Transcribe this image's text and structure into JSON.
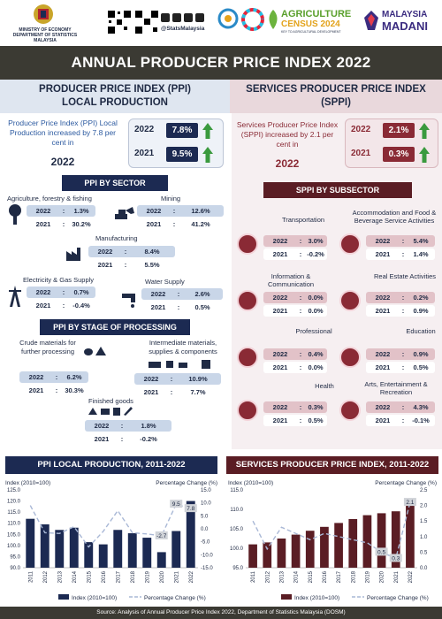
{
  "header": {
    "ministry_line1": "MINISTRY OF ECONOMY",
    "ministry_line2": "DEPARTMENT OF STATISTICS MALAYSIA",
    "social_handle": "@StatsMalaysia",
    "census_title": "AGRICULTURE",
    "census_sub": "CENSUS 2024",
    "census_tag": "KEY TO AGRICULTURAL DEVELOPMENT",
    "madani_line1": "MALAYSIA",
    "madani_line2": "MADANI"
  },
  "title": "ANNUAL PRODUCER PRICE INDEX 2022",
  "left": {
    "heading_line1": "PRODUCER PRICE INDEX (PPI)",
    "heading_line2": "LOCAL PRODUCTION",
    "summary": "Producer Price Index (PPI) Local Production increased by 7.8 per cent in",
    "summary_year": "2022",
    "headline": [
      {
        "year": "2022",
        "value": "7.8%"
      },
      {
        "year": "2021",
        "value": "9.5%"
      }
    ],
    "sector_title": "PPI BY SECTOR",
    "sectors": [
      {
        "name": "Agriculture, forestry & fishing",
        "y2022": "1.3%",
        "y2021": "30.2%"
      },
      {
        "name": "Mining",
        "y2022": "12.6%",
        "y2021": "41.2%"
      },
      {
        "name": "Manufacturing",
        "y2022": "8.4%",
        "y2021": "5.5%"
      },
      {
        "name": "Electricity & Gas Supply",
        "y2022": "0.7%",
        "y2021": "-0.4%"
      },
      {
        "name": "Water Supply",
        "y2022": "2.6%",
        "y2021": "0.5%"
      }
    ],
    "stage_title": "PPI BY STAGE OF PROCESSING",
    "stages": [
      {
        "name": "Crude materials  for further processing",
        "y2022": "6.2%",
        "y2021": "30.3%"
      },
      {
        "name": "Intermediate materials, supplies & components",
        "y2022": "10.9%",
        "y2021": "7.7%"
      },
      {
        "name": "Finished goods",
        "y2022": "1.8%",
        "y2021": "-0.2%"
      }
    ],
    "year_2022": "2022",
    "year_2021": "2021"
  },
  "right": {
    "heading_line1": "SERVICES PRODUCER PRICE INDEX",
    "heading_line2": "(SPPI)",
    "summary": "Services Producer Price Index (SPPI) increased by 2.1 per cent in",
    "summary_year": "2022",
    "headline": [
      {
        "year": "2022",
        "value": "2.1%"
      },
      {
        "year": "2021",
        "value": "0.3%"
      }
    ],
    "subsector_title": "SPPI BY SUBSECTOR",
    "subsectors": [
      {
        "name": "Transportation",
        "y2022": "3.0%",
        "y2021": "-0.2%"
      },
      {
        "name": "Accommodation and Food & Beverage Service Activities",
        "y2022": "5.4%",
        "y2021": "1.4%"
      },
      {
        "name": "Information & Communication",
        "y2022": "0.0%",
        "y2021": "0.0%"
      },
      {
        "name": "Real Estate Activities",
        "y2022": "0.2%",
        "y2021": "0.9%"
      },
      {
        "name": "Professional",
        "y2022": "0.4%",
        "y2021": "0.0%"
      },
      {
        "name": "Education",
        "y2022": "0.9%",
        "y2021": "0.5%"
      },
      {
        "name": "Health",
        "y2022": "0.3%",
        "y2021": "0.5%"
      },
      {
        "name": "Arts, Entertainment & Recreation",
        "y2022": "4.3%",
        "y2021": "-0.1%"
      }
    ]
  },
  "colors": {
    "navy": "#1c2a52",
    "maroon": "#5a1d24",
    "green": "#3a9a3e"
  },
  "chart_data": [
    {
      "type": "bar",
      "title": "PPI LOCAL PRODUCTION, 2011-2022",
      "ylabel": "Index (2010=100)",
      "y2label": "Percentage Change (%)",
      "categories": [
        "2011",
        "2012",
        "2013",
        "2014",
        "2015",
        "2016",
        "2017",
        "2018",
        "2019",
        "2020",
        "2021",
        "2022"
      ],
      "yticks": [
        "125.0",
        "120.0",
        "115.0",
        "110.0",
        "105.0",
        "100.0",
        "95.0",
        "90.0"
      ],
      "y2ticks": [
        "15.0",
        "10.0",
        "5.0",
        "0.0",
        "-5.0",
        "-10.0",
        "-15.0"
      ],
      "ylim": [
        90,
        125
      ],
      "y2lim": [
        -15,
        15
      ],
      "series": [
        {
          "name": "Index (2010=100)",
          "values": [
            112.0,
            109.5,
            107.0,
            108.0,
            101.5,
            100.5,
            107.0,
            105.5,
            103.5,
            97.0,
            106.5,
            120.0
          ]
        },
        {
          "name": "Percentage Change (%)",
          "values": [
            9.0,
            -1.5,
            -1.8,
            0.8,
            -7.0,
            -1.0,
            7.0,
            -1.5,
            -2.0,
            -2.7,
            9.5,
            7.8
          ]
        }
      ],
      "data_labels": [
        {
          "index": 9,
          "text": "-2.7"
        },
        {
          "index": 10,
          "text": "9.5"
        },
        {
          "index": 11,
          "text": "7.8"
        }
      ]
    },
    {
      "type": "bar",
      "title": "SERVICES PRODUCER PRICE INDEX, 2011-2022",
      "ylabel": "Index (2010=100)",
      "y2label": "Percentage Change (%)",
      "categories": [
        "2011",
        "2012",
        "2013",
        "2014",
        "2015",
        "2016",
        "2017",
        "2018",
        "2019",
        "2020",
        "2021",
        "2022"
      ],
      "yticks": [
        "115.0",
        "110.0",
        "105.0",
        "100.0",
        "95.0"
      ],
      "y2ticks": [
        "2.5",
        "2.0",
        "1.5",
        "1.0",
        "0.5",
        "0.0"
      ],
      "ylim": [
        95,
        115
      ],
      "y2lim": [
        0,
        2.5
      ],
      "series": [
        {
          "name": "Index (2010=100)",
          "values": [
            101.0,
            101.5,
            102.5,
            103.5,
            104.5,
            105.5,
            106.5,
            107.5,
            108.5,
            109.0,
            109.5,
            112.0
          ]
        },
        {
          "name": "Percentage Change (%)",
          "values": [
            1.5,
            0.6,
            1.3,
            1.1,
            0.9,
            1.1,
            1.0,
            0.9,
            0.8,
            0.5,
            0.3,
            2.1
          ]
        }
      ],
      "data_labels": [
        {
          "index": 9,
          "text": "0.5"
        },
        {
          "index": 10,
          "text": "0.3"
        },
        {
          "index": 11,
          "text": "2.1"
        }
      ]
    }
  ],
  "legend": {
    "bar": "Index (2010=100)",
    "line": "Percentage Change (%)"
  },
  "footer": "Source:  Analysis of Annual Producer Price Index 2022, Department of Statistics Malaysia (DOSM)"
}
